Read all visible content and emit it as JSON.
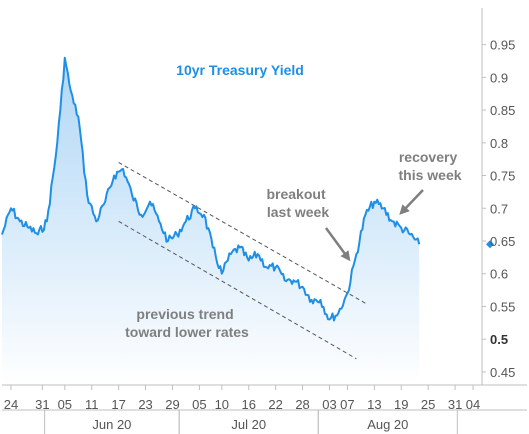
{
  "chart_data": {
    "type": "area",
    "title": "10yr Treasury Yield",
    "xlabel": "",
    "ylabel": "",
    "ylim": [
      0.43,
      0.98
    ],
    "y_ticks": [
      0.45,
      0.5,
      0.55,
      0.6,
      0.65,
      0.7,
      0.75,
      0.8,
      0.85,
      0.9,
      0.95
    ],
    "y_tick_labels": [
      "0.45",
      "0.5",
      "0.55",
      "0.6",
      "0.65",
      "0.7",
      "0.75",
      "0.8",
      "0.85",
      "0.9",
      "0.95"
    ],
    "y_bold_tick": "0.5",
    "x_range": [
      "2020-05-22",
      "2020-09-06"
    ],
    "x_ticks": [
      "2020-05-24",
      "2020-05-31",
      "2020-06-05",
      "2020-06-11",
      "2020-06-17",
      "2020-06-23",
      "2020-06-29",
      "2020-07-05",
      "2020-07-10",
      "2020-07-16",
      "2020-07-22",
      "2020-07-28",
      "2020-08-03",
      "2020-08-07",
      "2020-08-13",
      "2020-08-19",
      "2020-08-25",
      "2020-08-31",
      "2020-09-04"
    ],
    "x_tick_labels": [
      "24",
      "31",
      "05",
      "11",
      "17",
      "23",
      "29",
      "05",
      "10",
      "16",
      "22",
      "28",
      "03",
      "07",
      "13",
      "19",
      "25",
      "31",
      "04"
    ],
    "months": [
      {
        "label": "Jun 20",
        "start": "2020-06-01",
        "end": "2020-06-30"
      },
      {
        "label": "Jul 20",
        "start": "2020-07-01",
        "end": "2020-07-31"
      },
      {
        "label": "Aug 20",
        "start": "2020-08-01",
        "end": "2020-08-31"
      }
    ],
    "last_value": 0.645,
    "series": [
      {
        "x": [
          "2020-05-22",
          "2020-05-24",
          "2020-05-26",
          "2020-05-28",
          "2020-05-30",
          "2020-06-01",
          "2020-06-03",
          "2020-06-04",
          "2020-06-05",
          "2020-06-06",
          "2020-06-07",
          "2020-06-08",
          "2020-06-10",
          "2020-06-12",
          "2020-06-14",
          "2020-06-16",
          "2020-06-18",
          "2020-06-20",
          "2020-06-22",
          "2020-06-24",
          "2020-06-26",
          "2020-06-28",
          "2020-06-30",
          "2020-07-02",
          "2020-07-04",
          "2020-07-06",
          "2020-07-08",
          "2020-07-10",
          "2020-07-12",
          "2020-07-14",
          "2020-07-16",
          "2020-07-18",
          "2020-07-20",
          "2020-07-22",
          "2020-07-24",
          "2020-07-26",
          "2020-07-28",
          "2020-07-30",
          "2020-08-01",
          "2020-08-03",
          "2020-08-05",
          "2020-08-07",
          "2020-08-09",
          "2020-08-11",
          "2020-08-13",
          "2020-08-15",
          "2020-08-17",
          "2020-08-19",
          "2020-08-21",
          "2020-08-23"
        ],
        "y": [
          0.66,
          0.7,
          0.68,
          0.67,
          0.66,
          0.68,
          0.78,
          0.85,
          0.93,
          0.89,
          0.86,
          0.84,
          0.72,
          0.68,
          0.71,
          0.75,
          0.76,
          0.72,
          0.69,
          0.71,
          0.68,
          0.65,
          0.66,
          0.68,
          0.7,
          0.69,
          0.64,
          0.6,
          0.63,
          0.64,
          0.62,
          0.63,
          0.61,
          0.61,
          0.59,
          0.59,
          0.58,
          0.56,
          0.56,
          0.53,
          0.54,
          0.57,
          0.63,
          0.69,
          0.71,
          0.7,
          0.68,
          0.67,
          0.66,
          0.645
        ]
      }
    ],
    "trend_upper": {
      "x": [
        "2020-06-17",
        "2020-08-11"
      ],
      "y": [
        0.77,
        0.555
      ]
    },
    "trend_lower": {
      "x": [
        "2020-06-17",
        "2020-08-09"
      ],
      "y": [
        0.68,
        0.47
      ]
    },
    "annotations": [
      {
        "id": "breakout",
        "lines": [
          "breakout",
          "last week"
        ]
      },
      {
        "id": "recovery",
        "lines": [
          "recovery",
          "this week"
        ]
      },
      {
        "id": "previous",
        "lines": [
          "previous trend",
          "toward lower rates"
        ]
      }
    ],
    "colors": {
      "line": "#1e8fe6",
      "fill_top": "#a9d3f5",
      "fill_bottom": "#ffffff",
      "annotation": "#7f7f7f",
      "axis": "#bfbfbf"
    }
  }
}
